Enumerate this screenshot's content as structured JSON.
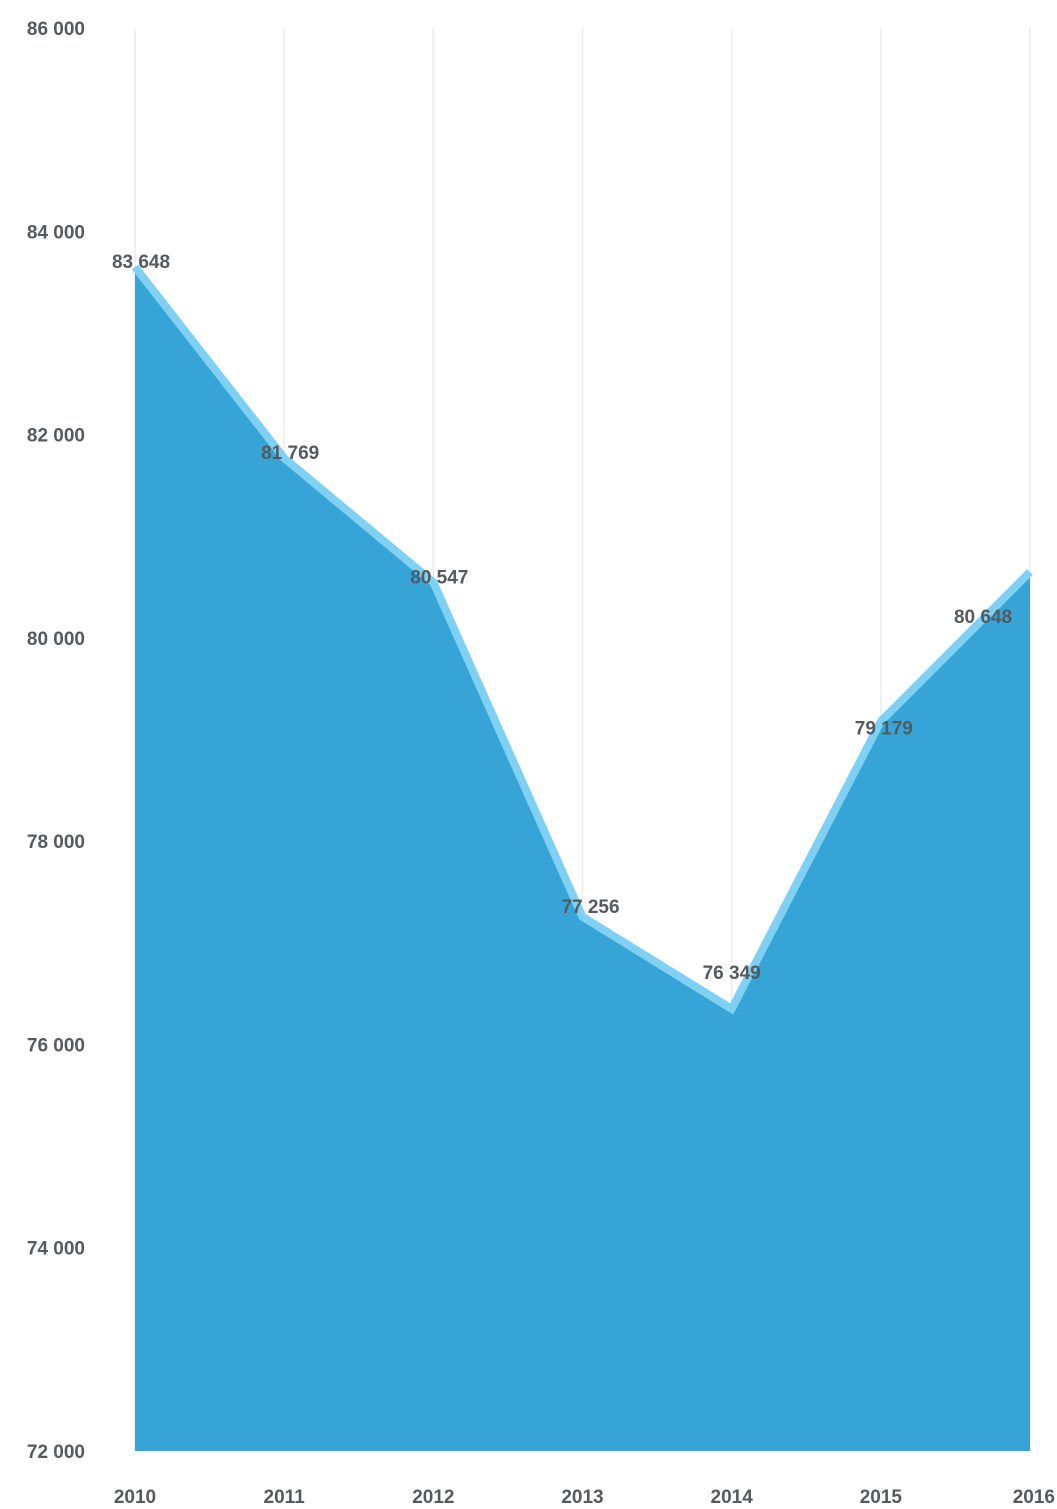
{
  "chart_data": {
    "type": "area",
    "title": "",
    "xlabel": "",
    "ylabel": "",
    "x": [
      "2010",
      "2011",
      "2012",
      "2013",
      "2014",
      "2015",
      "2016"
    ],
    "series": [
      {
        "values": [
          83648,
          81769,
          80547,
          77256,
          76349,
          79179,
          80648
        ],
        "data_labels": [
          "83 648",
          "81 769",
          "80 547",
          "77 256",
          "76 349",
          "79 179",
          "80 648"
        ],
        "fill_color": "#37a4d8",
        "line_color": "#7fd0f2"
      }
    ],
    "ylim": [
      72000,
      86000
    ],
    "y_ticks": [
      72000,
      74000,
      76000,
      78000,
      80000,
      82000,
      84000,
      86000
    ],
    "y_tick_labels": [
      "72 000",
      "74 000",
      "76 000",
      "78 000",
      "80 000",
      "82 000",
      "84 000",
      "86 000"
    ],
    "grid": "vertical",
    "legend": "none"
  }
}
